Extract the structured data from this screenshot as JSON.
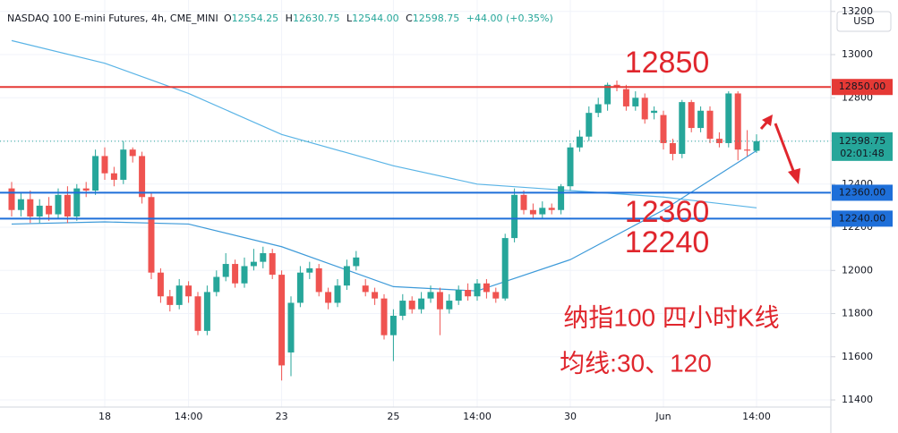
{
  "header": {
    "title": "NASDAQ 100 E-mini Futures, 4h, CME_MINI",
    "ohlc_labels": [
      "O",
      "H",
      "L",
      "C"
    ],
    "ohlc": [
      "12554.25",
      "12630.75",
      "12544.00",
      "12598.75"
    ],
    "change": "+44.00 (+0.35%)",
    "currency": "USD"
  },
  "chart_data": {
    "type": "candlestick",
    "categories": [
      null,
      null,
      null,
      null,
      null,
      null,
      null,
      null,
      null,
      null,
      "18",
      null,
      null,
      null,
      null,
      null,
      null,
      null,
      null,
      "14:00",
      null,
      null,
      null,
      null,
      null,
      null,
      null,
      null,
      null,
      "23",
      null,
      null,
      null,
      null,
      null,
      null,
      null,
      null,
      null,
      null,
      null,
      "25",
      null,
      null,
      null,
      null,
      null,
      null,
      null,
      null,
      "14:00",
      null,
      null,
      null,
      null,
      null,
      null,
      null,
      null,
      null,
      "30",
      null,
      null,
      null,
      null,
      null,
      null,
      null,
      null,
      null,
      "Jun",
      null,
      null,
      null,
      null,
      null,
      null,
      null,
      null,
      null,
      "14:00"
    ],
    "open": [
      12380,
      12280,
      12330,
      12250,
      12300,
      12260,
      12350,
      12250,
      12380,
      12370,
      12530,
      12450,
      12420,
      12560,
      12530,
      12340,
      11990,
      11880,
      11840,
      11930,
      11880,
      11720,
      11900,
      11970,
      12030,
      11940,
      12020,
      12040,
      12080,
      11980,
      11620,
      11850,
      11990,
      12010,
      11900,
      11850,
      11930,
      12020,
      11930,
      11900,
      11870,
      11700,
      11790,
      11860,
      11820,
      11870,
      11900,
      11820,
      11860,
      11910,
      11880,
      11940,
      11900,
      11870,
      12150,
      12350,
      12280,
      12260,
      12290,
      12280,
      12390,
      12570,
      12620,
      12730,
      12770,
      12860,
      12840,
      12760,
      12800,
      12730,
      12720,
      12590,
      12540,
      12780,
      12660,
      12740,
      12610,
      12590,
      12820,
      12560,
      12554.25
    ],
    "high": [
      12410,
      12360,
      12370,
      12330,
      12340,
      12380,
      12390,
      12400,
      12410,
      12560,
      12570,
      12480,
      12600,
      12570,
      12550,
      12360,
      12010,
      11910,
      11960,
      11950,
      11900,
      11930,
      12000,
      12080,
      12050,
      12060,
      12100,
      12110,
      12100,
      12000,
      11880,
      12020,
      12040,
      12030,
      11920,
      11960,
      12050,
      12090,
      11960,
      11920,
      11890,
      11820,
      11890,
      11880,
      11900,
      11930,
      11920,
      11890,
      11930,
      11940,
      11960,
      11960,
      11920,
      12170,
      12380,
      12370,
      12310,
      12320,
      12310,
      12400,
      12590,
      12650,
      12760,
      12800,
      12870,
      12880,
      12860,
      12830,
      12820,
      12760,
      12740,
      12610,
      12790,
      12790,
      12760,
      12760,
      12640,
      12830,
      12830,
      12650,
      12630.75
    ],
    "low": [
      12250,
      12250,
      12220,
      12220,
      12230,
      12240,
      12220,
      12230,
      12340,
      12350,
      12420,
      12390,
      12400,
      12500,
      12310,
      11960,
      11850,
      11810,
      11820,
      11850,
      11700,
      11700,
      11880,
      11950,
      11920,
      11920,
      12000,
      12010,
      11960,
      11490,
      11510,
      11830,
      11960,
      11880,
      11820,
      11830,
      11910,
      12000,
      11880,
      11840,
      11680,
      11580,
      11770,
      11800,
      11800,
      11850,
      11700,
      11800,
      11840,
      11860,
      11860,
      11870,
      11850,
      11860,
      12130,
      12260,
      12240,
      12240,
      12260,
      12260,
      12370,
      12550,
      12600,
      12710,
      12740,
      12830,
      12740,
      12740,
      12680,
      12700,
      12560,
      12510,
      12520,
      12640,
      12640,
      12590,
      12570,
      12570,
      12510,
      12530,
      12544
    ],
    "close": [
      12280,
      12330,
      12250,
      12300,
      12260,
      12350,
      12250,
      12380,
      12370,
      12530,
      12450,
      12420,
      12560,
      12530,
      12340,
      11990,
      11880,
      11840,
      11930,
      11880,
      11720,
      11900,
      11970,
      12030,
      11940,
      12020,
      12040,
      12080,
      11980,
      11560,
      11850,
      11990,
      12010,
      11900,
      11850,
      11930,
      12020,
      12060,
      11900,
      11870,
      11700,
      11790,
      11860,
      11820,
      11870,
      11900,
      11820,
      11860,
      11910,
      11880,
      11940,
      11900,
      11870,
      12150,
      12350,
      12280,
      12260,
      12290,
      12280,
      12390,
      12570,
      12620,
      12730,
      12770,
      12860,
      12850,
      12760,
      12800,
      12700,
      12740,
      12590,
      12540,
      12780,
      12660,
      12740,
      12610,
      12590,
      12820,
      12560,
      12555,
      12598.75
    ],
    "up_color": "#26a69a",
    "down_color": "#ef5350",
    "lines": [
      {
        "color": "#5ab4e6",
        "x": [
          0,
          10,
          19,
          29,
          41,
          50,
          60,
          70,
          80
        ],
        "values": [
          13065,
          12960,
          12820,
          12630,
          12485,
          12400,
          12370,
          12340,
          12290
        ]
      },
      {
        "color": "#3d9ad9",
        "x": [
          0,
          10,
          19,
          29,
          41,
          50,
          60,
          70,
          80
        ],
        "values": [
          12215,
          12225,
          12215,
          12110,
          11925,
          11905,
          12050,
          12280,
          12555
        ]
      }
    ],
    "levels": [
      {
        "value": 12850,
        "label": "12850.00",
        "color": "#e53935"
      },
      {
        "value": 12360,
        "label": "12360.00",
        "color": "#1e6fd9"
      },
      {
        "value": 12240,
        "label": "12240.00",
        "color": "#1e6fd9"
      }
    ],
    "last_price": 12598.75,
    "countdown": "02:01:48",
    "ylim": [
      11367,
      13253
    ],
    "yticks": [
      11400,
      11600,
      11800,
      12000,
      12200,
      12400,
      12600,
      12800,
      13000,
      13200
    ],
    "annotations": [
      "12850",
      "12360",
      "12240",
      "纳指100 四小时K线",
      "均线:30、120"
    ]
  }
}
